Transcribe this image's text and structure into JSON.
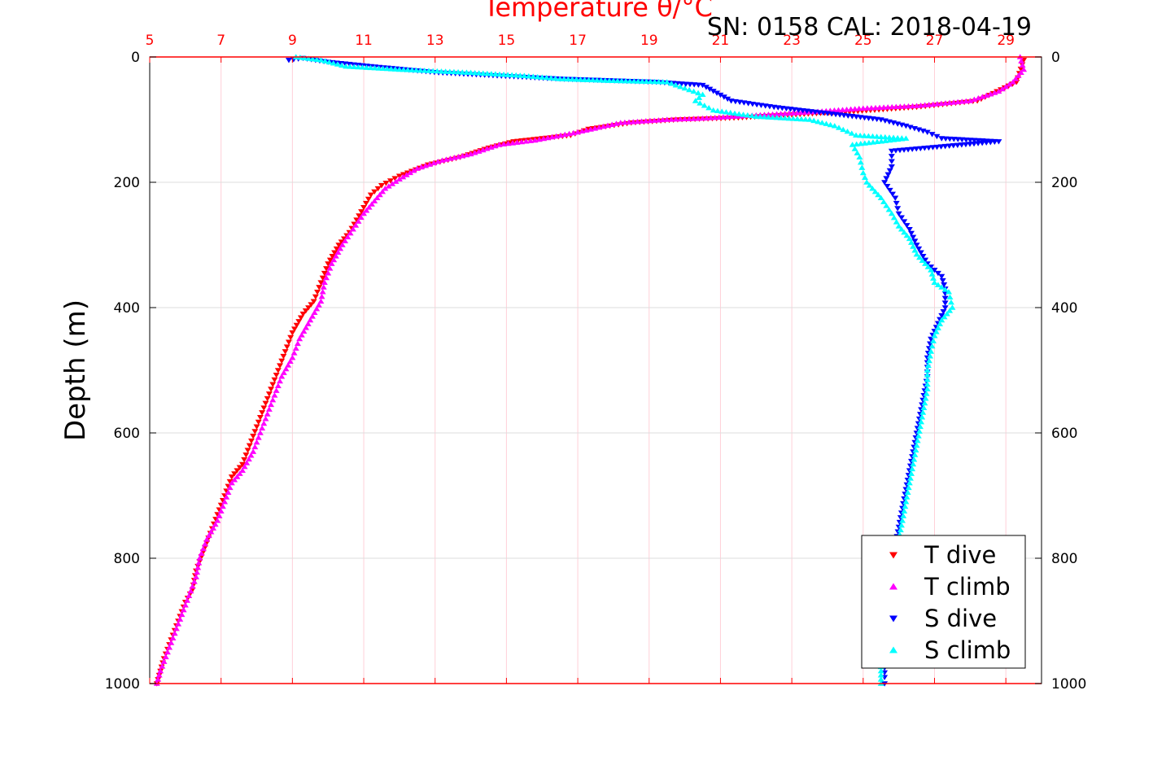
{
  "chart_data": {
    "type": "scatter",
    "title": "Temperature θ/°C",
    "annotation": "SN: 0158  CAL: 2018-04-19",
    "ylabel": "Depth (m)",
    "x_ticks": [
      "5",
      "7",
      "9",
      "11",
      "13",
      "15",
      "17",
      "19",
      "21",
      "23",
      "25",
      "27",
      "29"
    ],
    "y_ticks": [
      "0",
      "200",
      "400",
      "600",
      "800",
      "1000"
    ],
    "xlim": [
      5,
      30
    ],
    "ylim": [
      0,
      1000
    ],
    "y_reversed": true,
    "grid": true,
    "legend_position": "bottom-right",
    "colors": {
      "t_dive": "#ff0000",
      "t_climb": "#ff00ff",
      "s_dive": "#0000ff",
      "s_climb": "#00ffff",
      "grid": "#dddddd",
      "top_axis": "#ff0000"
    },
    "series": [
      {
        "name": "T dive",
        "marker": "triangle-down",
        "color": "#ff0000",
        "points": [
          [
            29.5,
            5
          ],
          [
            29.3,
            40
          ],
          [
            28.2,
            70
          ],
          [
            26.5,
            80
          ],
          [
            24.5,
            88
          ],
          [
            23.0,
            92
          ],
          [
            21.5,
            97
          ],
          [
            19.8,
            100
          ],
          [
            18.5,
            105
          ],
          [
            17.3,
            115
          ],
          [
            16.8,
            125
          ],
          [
            15.2,
            135
          ],
          [
            14.5,
            145
          ],
          [
            13.7,
            160
          ],
          [
            12.8,
            172
          ],
          [
            12.0,
            190
          ],
          [
            11.5,
            205
          ],
          [
            11.2,
            220
          ],
          [
            11.0,
            240
          ],
          [
            10.8,
            260
          ],
          [
            10.6,
            280
          ],
          [
            10.3,
            300
          ],
          [
            10.0,
            330
          ],
          [
            9.8,
            360
          ],
          [
            9.6,
            390
          ],
          [
            9.3,
            410
          ],
          [
            9.0,
            440
          ],
          [
            8.8,
            470
          ],
          [
            8.6,
            500
          ],
          [
            8.4,
            530
          ],
          [
            8.2,
            560
          ],
          [
            8.0,
            590
          ],
          [
            7.8,
            620
          ],
          [
            7.6,
            650
          ],
          [
            7.3,
            670
          ],
          [
            7.1,
            700
          ],
          [
            6.9,
            730
          ],
          [
            6.7,
            760
          ],
          [
            6.5,
            790
          ],
          [
            6.3,
            820
          ],
          [
            6.2,
            850
          ],
          [
            6.0,
            870
          ],
          [
            5.8,
            900
          ],
          [
            5.6,
            930
          ],
          [
            5.4,
            960
          ],
          [
            5.3,
            980
          ],
          [
            5.2,
            1000
          ]
        ]
      },
      {
        "name": "T climb",
        "marker": "triangle-up",
        "color": "#ff00ff",
        "points": [
          [
            29.4,
            0
          ],
          [
            29.5,
            20
          ],
          [
            29.2,
            40
          ],
          [
            28.8,
            55
          ],
          [
            28.0,
            70
          ],
          [
            26.5,
            78
          ],
          [
            25.0,
            82
          ],
          [
            23.5,
            88
          ],
          [
            22.0,
            93
          ],
          [
            20.5,
            98
          ],
          [
            19.5,
            100
          ],
          [
            18.2,
            105
          ],
          [
            17.0,
            120
          ],
          [
            15.8,
            133
          ],
          [
            14.8,
            140
          ],
          [
            14.0,
            155
          ],
          [
            13.2,
            165
          ],
          [
            12.5,
            178
          ],
          [
            12.0,
            195
          ],
          [
            11.6,
            210
          ],
          [
            11.3,
            230
          ],
          [
            11.0,
            250
          ],
          [
            10.7,
            275
          ],
          [
            10.4,
            300
          ],
          [
            10.1,
            330
          ],
          [
            9.9,
            360
          ],
          [
            9.8,
            390
          ],
          [
            9.5,
            420
          ],
          [
            9.2,
            450
          ],
          [
            9.0,
            480
          ],
          [
            8.7,
            510
          ],
          [
            8.5,
            540
          ],
          [
            8.3,
            570
          ],
          [
            8.1,
            600
          ],
          [
            7.9,
            630
          ],
          [
            7.6,
            660
          ],
          [
            7.3,
            680
          ],
          [
            7.1,
            710
          ],
          [
            6.9,
            740
          ],
          [
            6.6,
            770
          ],
          [
            6.4,
            800
          ],
          [
            6.3,
            830
          ],
          [
            6.1,
            860
          ],
          [
            5.9,
            890
          ],
          [
            5.7,
            920
          ],
          [
            5.5,
            950
          ],
          [
            5.3,
            980
          ],
          [
            5.2,
            1000
          ]
        ]
      },
      {
        "name": "S dive",
        "marker": "triangle-down",
        "color": "#0000ff",
        "points": [
          [
            8.9,
            5
          ],
          [
            9.3,
            2
          ],
          [
            10.0,
            8
          ],
          [
            11.2,
            15
          ],
          [
            13.1,
            25
          ],
          [
            16.5,
            35
          ],
          [
            19.2,
            40
          ],
          [
            20.5,
            45
          ],
          [
            21.3,
            70
          ],
          [
            22.5,
            80
          ],
          [
            24.0,
            90
          ],
          [
            25.5,
            100
          ],
          [
            26.2,
            110
          ],
          [
            26.8,
            120
          ],
          [
            27.2,
            130
          ],
          [
            28.8,
            135
          ],
          [
            25.8,
            150
          ],
          [
            25.8,
            175
          ],
          [
            25.6,
            200
          ],
          [
            25.9,
            225
          ],
          [
            26.0,
            250
          ],
          [
            26.3,
            275
          ],
          [
            26.5,
            300
          ],
          [
            26.8,
            330
          ],
          [
            27.2,
            350
          ],
          [
            27.3,
            370
          ],
          [
            27.3,
            400
          ],
          [
            27.1,
            425
          ],
          [
            26.9,
            450
          ],
          [
            26.8,
            480
          ],
          [
            26.8,
            510
          ],
          [
            26.7,
            540
          ],
          [
            26.6,
            570
          ],
          [
            26.5,
            600
          ],
          [
            26.4,
            630
          ],
          [
            26.3,
            660
          ],
          [
            26.2,
            690
          ],
          [
            26.1,
            720
          ],
          [
            26.0,
            750
          ],
          [
            25.9,
            780
          ],
          [
            25.8,
            810
          ],
          [
            25.8,
            840
          ],
          [
            25.7,
            870
          ],
          [
            25.7,
            900
          ],
          [
            25.6,
            930
          ],
          [
            25.6,
            960
          ],
          [
            25.6,
            990
          ],
          [
            25.6,
            1000
          ]
        ]
      },
      {
        "name": "S climb",
        "marker": "triangle-up",
        "color": "#00ffff",
        "points": [
          [
            9.1,
            0
          ],
          [
            9.8,
            5
          ],
          [
            10.5,
            15
          ],
          [
            12.0,
            20
          ],
          [
            14.0,
            25
          ],
          [
            15.5,
            30
          ],
          [
            16.5,
            35
          ],
          [
            18.0,
            38
          ],
          [
            19.5,
            40
          ],
          [
            20.0,
            50
          ],
          [
            20.5,
            60
          ],
          [
            20.3,
            70
          ],
          [
            20.8,
            85
          ],
          [
            22.0,
            95
          ],
          [
            23.5,
            100
          ],
          [
            24.2,
            110
          ],
          [
            24.8,
            125
          ],
          [
            26.2,
            130
          ],
          [
            24.7,
            140
          ],
          [
            24.9,
            160
          ],
          [
            25.0,
            185
          ],
          [
            25.1,
            200
          ],
          [
            25.5,
            225
          ],
          [
            25.8,
            250
          ],
          [
            26.0,
            270
          ],
          [
            26.3,
            290
          ],
          [
            26.5,
            315
          ],
          [
            26.9,
            340
          ],
          [
            27.0,
            360
          ],
          [
            27.4,
            375
          ],
          [
            27.5,
            400
          ],
          [
            27.2,
            420
          ],
          [
            27.0,
            445
          ],
          [
            26.9,
            470
          ],
          [
            26.8,
            500
          ],
          [
            26.8,
            530
          ],
          [
            26.7,
            560
          ],
          [
            26.6,
            590
          ],
          [
            26.5,
            620
          ],
          [
            26.4,
            650
          ],
          [
            26.3,
            680
          ],
          [
            26.2,
            710
          ],
          [
            26.1,
            740
          ],
          [
            26.0,
            770
          ],
          [
            25.9,
            800
          ],
          [
            25.8,
            830
          ],
          [
            25.7,
            860
          ],
          [
            25.6,
            890
          ],
          [
            25.5,
            930
          ],
          [
            25.5,
            960
          ],
          [
            25.5,
            1000
          ]
        ]
      }
    ]
  }
}
